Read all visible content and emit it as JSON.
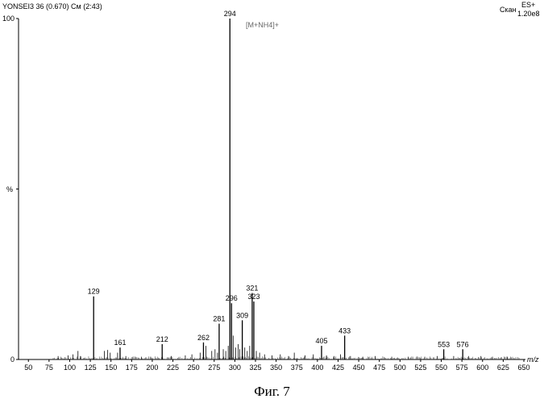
{
  "header": {
    "sample_id": "YONSEI3 36 (0.670) См (2:43)",
    "scan_label": "Скан",
    "ion_mode": "ES+",
    "intensity": "1.20e8"
  },
  "figure_caption": "Фиг. 7",
  "chart_data": {
    "type": "bar",
    "xlabel": "m/z",
    "ylabel": "%",
    "xlim": [
      40,
      650
    ],
    "ylim": [
      0,
      100
    ],
    "x_ticks": [
      50,
      75,
      100,
      125,
      150,
      175,
      200,
      225,
      250,
      275,
      300,
      325,
      350,
      375,
      400,
      425,
      450,
      475,
      500,
      525,
      550,
      575,
      600,
      625,
      650
    ],
    "y_ticks": [
      0,
      100
    ],
    "y_mid_label": "%",
    "annotation": "[M+NH4]+",
    "labeled_peaks": [
      {
        "mz": 129,
        "intensity": 18.5,
        "label": "129"
      },
      {
        "mz": 161,
        "intensity": 3.5,
        "label": "161"
      },
      {
        "mz": 212,
        "intensity": 4.5,
        "label": "212"
      },
      {
        "mz": 262,
        "intensity": 5.0,
        "label": "262"
      },
      {
        "mz": 281,
        "intensity": 10.5,
        "label": "281"
      },
      {
        "mz": 294,
        "intensity": 100,
        "label": "294"
      },
      {
        "mz": 296,
        "intensity": 16.5,
        "label": "296"
      },
      {
        "mz": 309,
        "intensity": 11.5,
        "label": "309"
      },
      {
        "mz": 321,
        "intensity": 19.5,
        "label": "321"
      },
      {
        "mz": 323,
        "intensity": 17.0,
        "label": "323"
      },
      {
        "mz": 405,
        "intensity": 4.0,
        "label": "405"
      },
      {
        "mz": 433,
        "intensity": 7.0,
        "label": "433"
      },
      {
        "mz": 553,
        "intensity": 3.0,
        "label": "553"
      },
      {
        "mz": 576,
        "intensity": 3.0,
        "label": "576"
      }
    ],
    "minor_peaks": [
      {
        "mz": 86,
        "intensity": 1.0
      },
      {
        "mz": 98,
        "intensity": 1.2
      },
      {
        "mz": 104,
        "intensity": 1.5
      },
      {
        "mz": 110,
        "intensity": 2.5
      },
      {
        "mz": 113,
        "intensity": 1.0
      },
      {
        "mz": 142,
        "intensity": 2.5
      },
      {
        "mz": 146,
        "intensity": 2.8
      },
      {
        "mz": 149,
        "intensity": 2.0
      },
      {
        "mz": 158,
        "intensity": 2.0
      },
      {
        "mz": 168,
        "intensity": 1.0
      },
      {
        "mz": 187,
        "intensity": 0.8
      },
      {
        "mz": 198,
        "intensity": 0.8
      },
      {
        "mz": 223,
        "intensity": 1.0
      },
      {
        "mz": 240,
        "intensity": 1.2
      },
      {
        "mz": 248,
        "intensity": 1.5
      },
      {
        "mz": 258,
        "intensity": 2.0
      },
      {
        "mz": 265,
        "intensity": 4.0
      },
      {
        "mz": 272,
        "intensity": 2.5
      },
      {
        "mz": 276,
        "intensity": 3.0
      },
      {
        "mz": 279,
        "intensity": 2.0
      },
      {
        "mz": 286,
        "intensity": 3.0
      },
      {
        "mz": 289,
        "intensity": 2.5
      },
      {
        "mz": 292,
        "intensity": 4.0
      },
      {
        "mz": 298,
        "intensity": 7.0
      },
      {
        "mz": 301,
        "intensity": 3.5
      },
      {
        "mz": 304,
        "intensity": 4.5
      },
      {
        "mz": 306,
        "intensity": 3.0
      },
      {
        "mz": 312,
        "intensity": 3.5
      },
      {
        "mz": 315,
        "intensity": 2.5
      },
      {
        "mz": 318,
        "intensity": 4.0
      },
      {
        "mz": 326,
        "intensity": 2.5
      },
      {
        "mz": 330,
        "intensity": 2.0
      },
      {
        "mz": 336,
        "intensity": 1.5
      },
      {
        "mz": 345,
        "intensity": 1.2
      },
      {
        "mz": 355,
        "intensity": 1.5
      },
      {
        "mz": 365,
        "intensity": 1.0
      },
      {
        "mz": 372,
        "intensity": 2.0
      },
      {
        "mz": 385,
        "intensity": 1.2
      },
      {
        "mz": 395,
        "intensity": 1.5
      },
      {
        "mz": 411,
        "intensity": 1.2
      },
      {
        "mz": 420,
        "intensity": 1.0
      },
      {
        "mz": 428,
        "intensity": 1.5
      },
      {
        "mz": 440,
        "intensity": 1.0
      },
      {
        "mz": 455,
        "intensity": 0.8
      },
      {
        "mz": 470,
        "intensity": 1.0
      },
      {
        "mz": 490,
        "intensity": 0.8
      },
      {
        "mz": 510,
        "intensity": 0.8
      },
      {
        "mz": 530,
        "intensity": 0.8
      },
      {
        "mz": 545,
        "intensity": 1.0
      },
      {
        "mz": 565,
        "intensity": 1.0
      },
      {
        "mz": 583,
        "intensity": 1.0
      },
      {
        "mz": 598,
        "intensity": 1.0
      },
      {
        "mz": 612,
        "intensity": 0.8
      },
      {
        "mz": 630,
        "intensity": 0.8
      }
    ]
  }
}
